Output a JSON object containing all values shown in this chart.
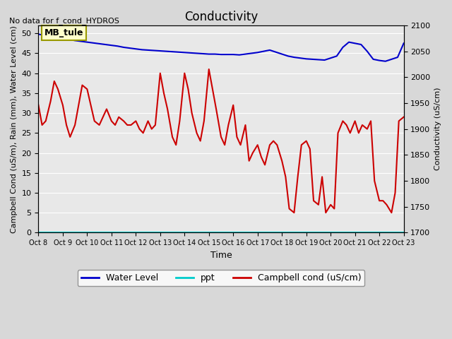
{
  "title": "Conductivity",
  "top_left_text": "No data for f_cond_HYDROS",
  "xlabel": "Time",
  "ylabel_left": "Campbell Cond (uS/m), Rain (mm), Water Level (cm)",
  "ylabel_right": "Conductivity (uS/cm)",
  "annotation_box": "MB_tule",
  "x_ticks": [
    "Oct 8",
    "Oct 9",
    "Oct 10",
    "Oct 11",
    "Oct 12",
    "Oct 13",
    "Oct 14",
    "Oct 15",
    "Oct 16",
    "Oct 17",
    "Oct 18",
    "Oct 19",
    "Oct 20",
    "Oct 21",
    "Oct 22",
    "Oct 23"
  ],
  "ylim_left": [
    0,
    52
  ],
  "ylim_right": [
    1700,
    2100
  ],
  "yticks_left": [
    0,
    5,
    10,
    15,
    20,
    25,
    30,
    35,
    40,
    45,
    50
  ],
  "yticks_right": [
    1700,
    1750,
    1800,
    1850,
    1900,
    1950,
    2000,
    2050,
    2100
  ],
  "background_color": "#e8e8e8",
  "plot_bg_color": "#f0f0f0",
  "water_level_color": "#0000cc",
  "ppt_color": "#00cccc",
  "campbell_cond_color": "#cc0000",
  "water_level_x": [
    0,
    0.5,
    1,
    1.5,
    2,
    2.5,
    3,
    3.5,
    4,
    4.5,
    5,
    5.5,
    6,
    6.5,
    7,
    7.5,
    8,
    8.5,
    9,
    9.5,
    10,
    10.5,
    11,
    11.5,
    12,
    12.5,
    13,
    13.5,
    14,
    14.5
  ],
  "water_level_y": [
    49.8,
    49.5,
    49.2,
    49.0,
    48.8,
    48.5,
    48.2,
    48.0,
    47.8,
    47.6,
    47.4,
    47.2,
    47.0,
    46.8,
    46.5,
    46.3,
    46.1,
    45.9,
    45.8,
    45.7,
    45.6,
    45.5,
    45.4,
    45.3,
    45.2,
    45.1,
    45.0,
    44.9,
    44.8,
    44.8
  ],
  "water_level_x2": [
    14.5,
    15,
    15.5,
    16,
    16.5,
    17,
    17.5,
    18,
    18.5,
    19,
    19.5,
    20,
    20.5,
    21,
    21.5,
    22,
    22.5,
    23,
    23.5,
    24,
    24.5,
    25,
    25.5,
    26,
    26.5,
    27,
    27.5,
    28,
    28.5,
    29,
    29.5,
    30
  ],
  "water_level_y2": [
    44.8,
    44.7,
    44.7,
    44.7,
    44.6,
    44.8,
    45.0,
    45.2,
    45.5,
    45.8,
    45.3,
    44.8,
    44.3,
    44.0,
    43.8,
    43.6,
    43.5,
    43.4,
    43.3,
    43.8,
    44.3,
    46.5,
    47.8,
    47.5,
    47.2,
    45.5,
    43.5,
    43.2,
    43.0,
    43.5,
    44.0,
    47.5
  ],
  "campbell_x": [
    0,
    0.3,
    0.6,
    1.0,
    1.3,
    1.6,
    2.0,
    2.3,
    2.6,
    3.0,
    3.3,
    3.6,
    4.0,
    4.3,
    4.6,
    5.0,
    5.3,
    5.6,
    6.0,
    6.3,
    6.6,
    7.0,
    7.3,
    7.6,
    8.0,
    8.3,
    8.6,
    9.0,
    9.3,
    9.6,
    10.0,
    10.3,
    10.6,
    11.0,
    11.3,
    11.6,
    12.0,
    12.3,
    12.6,
    13.0,
    13.3,
    13.6,
    14.0,
    14.3,
    14.6,
    15.0,
    15.3,
    15.6,
    16.0,
    16.3,
    16.6,
    17.0,
    17.3,
    17.6,
    18.0,
    18.3,
    18.6,
    19.0,
    19.3,
    19.6,
    20.0,
    20.3,
    20.6,
    21.0,
    21.3,
    21.6,
    22.0,
    22.3,
    22.6,
    23.0,
    23.3,
    23.6,
    24.0,
    24.3,
    24.6,
    25.0,
    25.3,
    25.6,
    26.0,
    26.3,
    26.6,
    27.0,
    27.3,
    27.6,
    28.0,
    28.3,
    28.6,
    29.0,
    29.3,
    29.6,
    30.0
  ],
  "campbell_y": [
    32,
    27,
    28,
    33,
    38,
    36,
    32,
    27,
    24,
    27,
    32,
    37,
    36,
    32,
    28,
    27,
    29,
    31,
    28,
    27,
    29,
    28,
    27,
    27,
    28,
    26,
    25,
    28,
    26,
    27,
    40,
    35,
    31,
    24,
    22,
    28,
    40,
    36,
    30,
    25,
    23,
    28,
    41,
    36,
    31,
    24,
    22,
    27,
    32,
    24,
    22,
    27,
    18,
    20,
    22,
    19,
    17,
    22,
    23,
    22,
    18,
    14,
    6,
    5,
    14,
    22,
    23,
    21,
    8,
    7,
    14,
    5,
    7,
    6,
    25,
    28,
    27,
    25,
    28,
    25,
    27,
    26,
    28,
    13,
    8,
    8,
    7,
    5,
    10,
    28,
    29
  ],
  "legend_labels": [
    "Water Level",
    "ppt",
    "Campbell cond (uS/cm)"
  ],
  "legend_colors": [
    "#0000cc",
    "#00cccc",
    "#cc0000"
  ]
}
